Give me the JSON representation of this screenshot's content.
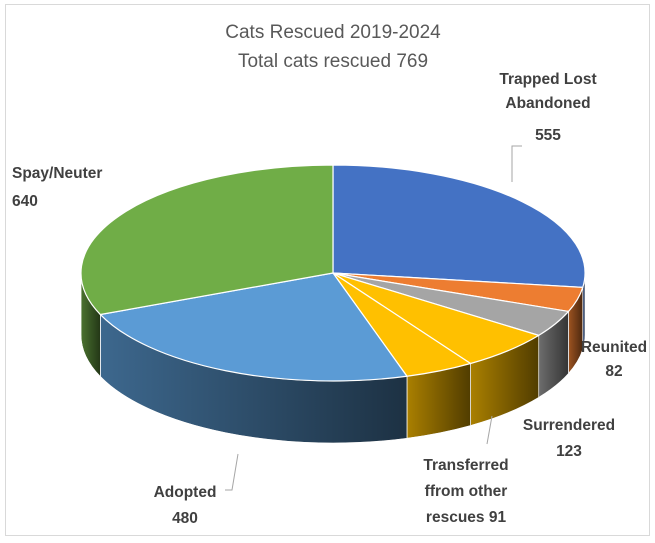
{
  "chart_data": {
    "type": "pie",
    "title": "Cats Rescued 2019-2024",
    "subtitle": "Total cats rescued 769",
    "slices": [
      {
        "label": [
          "Trapped Lost",
          "Abandoned"
        ],
        "value": 555,
        "value_text": "555",
        "color": "#4472c4"
      },
      {
        "label": [],
        "value": 75,
        "value_text": "",
        "color": "#ed7d31"
      },
      {
        "label": [
          "Reunited"
        ],
        "value": 82,
        "value_text": "82",
        "color": "#a5a5a5"
      },
      {
        "label": [
          "Surrendered"
        ],
        "value": 123,
        "value_text": "123",
        "color": "#ffc000"
      },
      {
        "label": [
          "Transferred",
          "ffrom other",
          "rescues 91"
        ],
        "value": 91,
        "value_text": "",
        "color": "#ffc000"
      },
      {
        "label": [
          "Adopted"
        ],
        "value": 480,
        "value_text": "480",
        "color": "#5b9bd5"
      },
      {
        "label": [
          "Spay/Neuter"
        ],
        "value": 640,
        "value_text": "640",
        "color": "#70ad47"
      }
    ]
  }
}
